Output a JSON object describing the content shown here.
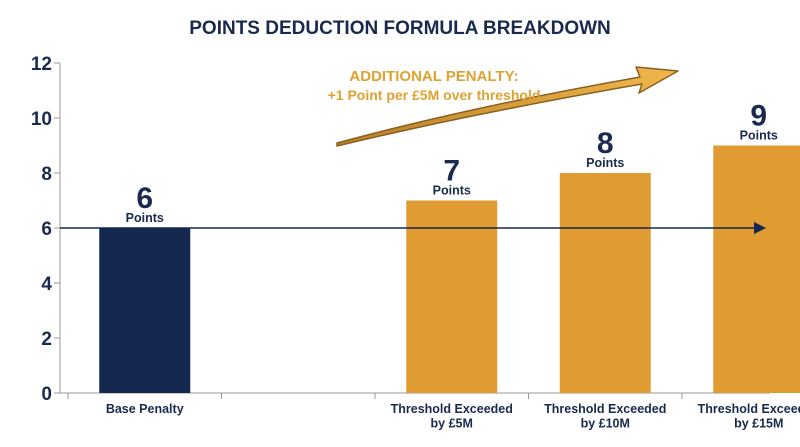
{
  "chart_data": {
    "type": "bar",
    "title": "POINTS DEDUCTION FORMULA BREAKDOWN",
    "xlabel": "",
    "ylabel": "",
    "ylim": [
      0,
      12
    ],
    "yticks": [
      0,
      2,
      4,
      6,
      8,
      10,
      12
    ],
    "grid": false,
    "legend": "none",
    "categories": [
      [
        "Base Penalty"
      ],
      [
        ""
      ],
      [
        "Threshold Exceeded",
        "by £5M"
      ],
      [
        "Threshold Exceeded",
        "by £10M"
      ],
      [
        "Threshold Exceeded",
        "by £15M"
      ]
    ],
    "values": [
      6,
      null,
      7,
      8,
      9
    ],
    "value_unit": "Points",
    "bar_colors": [
      "#15284f",
      null,
      "#e09c32",
      "#e09c32",
      "#e09c32"
    ],
    "reference_line": {
      "y": 6,
      "color": "#15284f"
    },
    "annotation": {
      "line1": "ADDITIONAL PENALTY:",
      "line2": "+1 Point per £5M over threshold",
      "color": "#e0a130"
    },
    "axis_color": "#9a9a9a",
    "text_color": "#1a2a4f"
  }
}
